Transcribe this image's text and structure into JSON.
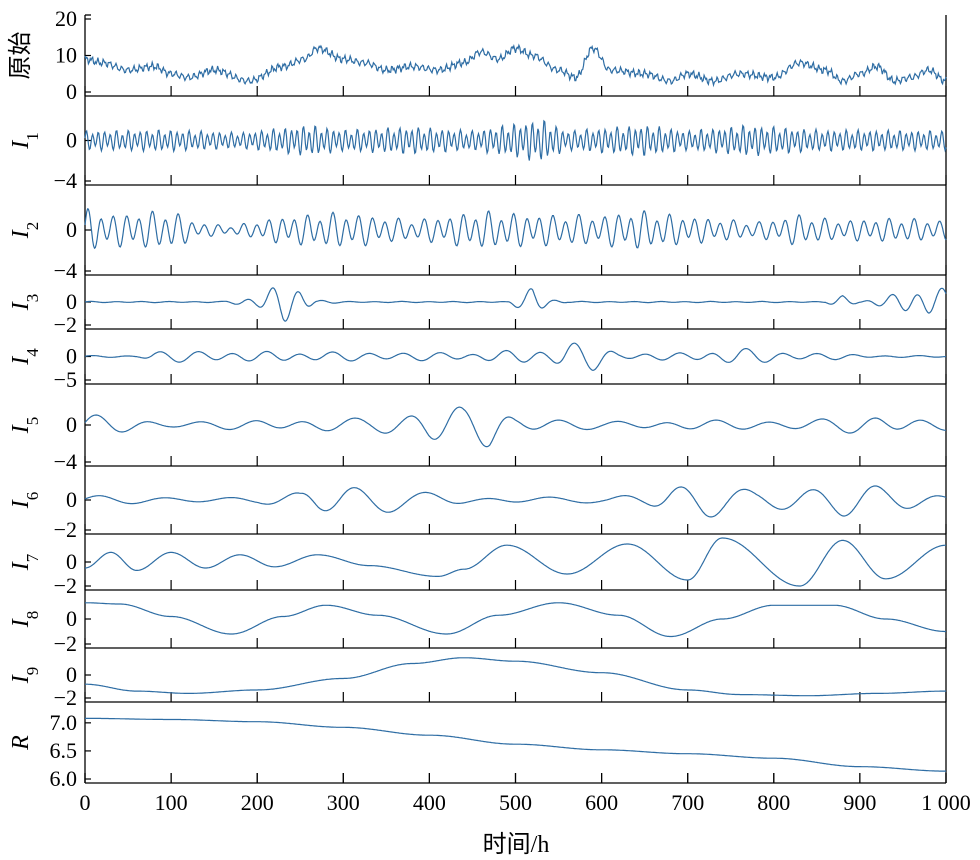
{
  "chart_data": {
    "type": "line",
    "x_range": [
      0,
      1000
    ],
    "x_ticks": [
      0,
      100,
      200,
      300,
      400,
      500,
      600,
      700,
      800,
      900,
      1000
    ],
    "x_tick_labels": [
      "0",
      "100",
      "200",
      "300",
      "400",
      "500",
      "600",
      "700",
      "800",
      "900",
      "1 000"
    ],
    "xlabel": "时间/h",
    "color": "#2e6da4",
    "grid": false,
    "panels": [
      {
        "label": "原始",
        "sub": "",
        "ylim": [
          0,
          20
        ],
        "yticks": [
          0,
          10,
          20
        ],
        "keypoints": [
          [
            0,
            9
          ],
          [
            20,
            8
          ],
          [
            50,
            6
          ],
          [
            80,
            7
          ],
          [
            100,
            5
          ],
          [
            120,
            4
          ],
          [
            150,
            6
          ],
          [
            190,
            3
          ],
          [
            230,
            7
          ],
          [
            255,
            9
          ],
          [
            270,
            12
          ],
          [
            300,
            9
          ],
          [
            325,
            8
          ],
          [
            350,
            6
          ],
          [
            380,
            7
          ],
          [
            410,
            6
          ],
          [
            440,
            8
          ],
          [
            460,
            11
          ],
          [
            480,
            9
          ],
          [
            500,
            12
          ],
          [
            520,
            10
          ],
          [
            550,
            6
          ],
          [
            570,
            4
          ],
          [
            590,
            12
          ],
          [
            610,
            6
          ],
          [
            650,
            5
          ],
          [
            680,
            3
          ],
          [
            700,
            5
          ],
          [
            730,
            3
          ],
          [
            760,
            5
          ],
          [
            800,
            4
          ],
          [
            830,
            8
          ],
          [
            860,
            6
          ],
          [
            880,
            3
          ],
          [
            900,
            5
          ],
          [
            920,
            7
          ],
          [
            940,
            3
          ],
          [
            960,
            4
          ],
          [
            980,
            6
          ],
          [
            1000,
            3
          ]
        ],
        "noise": 1.3,
        "noise_freq": 0.9
      },
      {
        "label": "I",
        "sub": "1",
        "ylim": [
          -4,
          4
        ],
        "yticks": [
          -4,
          0
        ],
        "keypoints": [
          [
            0,
            0
          ],
          [
            1000,
            0
          ]
        ],
        "oscillation": {
          "period": 7,
          "amps": [
            [
              0,
              1.0
            ],
            [
              100,
              1.1
            ],
            [
              180,
              0.8
            ],
            [
              260,
              1.6
            ],
            [
              300,
              1.1
            ],
            [
              380,
              1.4
            ],
            [
              450,
              1.0
            ],
            [
              530,
              2.2
            ],
            [
              560,
              1.0
            ],
            [
              650,
              1.6
            ],
            [
              700,
              1.0
            ],
            [
              770,
              1.6
            ],
            [
              850,
              1.1
            ],
            [
              1000,
              1.0
            ]
          ]
        }
      },
      {
        "label": "I",
        "sub": "2",
        "ylim": [
          -4,
          4
        ],
        "yticks": [
          -4,
          0
        ],
        "keypoints": [
          [
            0,
            0
          ],
          [
            1000,
            0
          ]
        ],
        "oscillation": {
          "period": 15,
          "amps": [
            [
              0,
              2.2
            ],
            [
              30,
              1.6
            ],
            [
              100,
              2.0
            ],
            [
              130,
              0.8
            ],
            [
              170,
              0.4
            ],
            [
              230,
              1.4
            ],
            [
              300,
              1.8
            ],
            [
              380,
              1.0
            ],
            [
              460,
              1.9
            ],
            [
              520,
              1.6
            ],
            [
              600,
              1.5
            ],
            [
              640,
              2.0
            ],
            [
              700,
              1.4
            ],
            [
              780,
              0.8
            ],
            [
              830,
              1.6
            ],
            [
              870,
              1.0
            ],
            [
              940,
              1.2
            ],
            [
              1000,
              1.0
            ]
          ]
        }
      },
      {
        "label": "I",
        "sub": "3",
        "ylim": [
          -2,
          2
        ],
        "yticks": [
          -2,
          0
        ],
        "keypoints": [
          [
            0,
            0
          ],
          [
            1000,
            0
          ]
        ],
        "oscillation": {
          "period": 30,
          "amps": [
            [
              0,
              0.05
            ],
            [
              160,
              0.05
            ],
            [
              180,
              0.3
            ],
            [
              200,
              0.6
            ],
            [
              230,
              1.8
            ],
            [
              250,
              1.3
            ],
            [
              270,
              0.2
            ],
            [
              300,
              0.05
            ],
            [
              490,
              0.05
            ],
            [
              510,
              0.8
            ],
            [
              520,
              1.4
            ],
            [
              540,
              0.4
            ],
            [
              560,
              0.05
            ],
            [
              860,
              0.05
            ],
            [
              880,
              0.6
            ],
            [
              900,
              0.1
            ],
            [
              930,
              0.5
            ],
            [
              960,
              1.1
            ],
            [
              980,
              1.5
            ],
            [
              1000,
              1.2
            ]
          ]
        }
      },
      {
        "label": "I",
        "sub": "4",
        "ylim": [
          -5,
          5
        ],
        "yticks": [
          -5,
          0
        ],
        "keypoints": [
          [
            0,
            0
          ],
          [
            1000,
            0
          ]
        ],
        "oscillation": {
          "period": 40,
          "amps": [
            [
              0,
              0.2
            ],
            [
              60,
              0.2
            ],
            [
              80,
              1.2
            ],
            [
              150,
              1.2
            ],
            [
              250,
              1.0
            ],
            [
              350,
              1.0
            ],
            [
              450,
              0.8
            ],
            [
              500,
              1.4
            ],
            [
              540,
              1.8
            ],
            [
              560,
              3.2
            ],
            [
              590,
              3.0
            ],
            [
              620,
              0.8
            ],
            [
              700,
              0.8
            ],
            [
              760,
              1.8
            ],
            [
              820,
              1.0
            ],
            [
              880,
              0.6
            ],
            [
              920,
              0.2
            ],
            [
              1000,
              0.2
            ]
          ]
        }
      },
      {
        "label": "I",
        "sub": "5",
        "ylim": [
          -4,
          4
        ],
        "yticks": [
          -4,
          0
        ],
        "keypoints": [
          [
            0,
            0
          ],
          [
            1000,
            0
          ]
        ],
        "oscillation": {
          "period": 60,
          "amps": [
            [
              0,
              1.2
            ],
            [
              100,
              0.4
            ],
            [
              250,
              0.6
            ],
            [
              330,
              0.8
            ],
            [
              370,
              1.6
            ],
            [
              400,
              2.6
            ],
            [
              420,
              2.4
            ],
            [
              440,
              2.0
            ],
            [
              470,
              2.5
            ],
            [
              500,
              1.0
            ],
            [
              600,
              0.4
            ],
            [
              700,
              0.5
            ],
            [
              800,
              0.6
            ],
            [
              870,
              0.8
            ],
            [
              920,
              1.0
            ],
            [
              1000,
              0.6
            ]
          ]
        }
      },
      {
        "label": "I",
        "sub": "6",
        "ylim": [
          -2,
          2
        ],
        "yticks": [
          -2,
          0
        ],
        "keypoints": [
          [
            0,
            0
          ],
          [
            1000,
            0
          ]
        ],
        "oscillation": {
          "period": 75,
          "amps": [
            [
              0,
              0.3
            ],
            [
              200,
              0.2
            ],
            [
              250,
              0.6
            ],
            [
              270,
              1.3
            ],
            [
              300,
              1.5
            ],
            [
              340,
              1.1
            ],
            [
              380,
              0.6
            ],
            [
              450,
              0.2
            ],
            [
              600,
              0.2
            ],
            [
              650,
              0.6
            ],
            [
              680,
              1.2
            ],
            [
              720,
              1.2
            ],
            [
              780,
              0.7
            ],
            [
              830,
              1.3
            ],
            [
              880,
              1.4
            ],
            [
              930,
              0.8
            ],
            [
              1000,
              0.5
            ]
          ]
        }
      },
      {
        "label": "I",
        "sub": "7",
        "ylim": [
          -2,
          2
        ],
        "yticks": [
          -2,
          0
        ],
        "keypoints": [
          [
            0,
            -0.5
          ],
          [
            30,
            0.8
          ],
          [
            60,
            -0.7
          ],
          [
            100,
            0.8
          ],
          [
            140,
            -0.5
          ],
          [
            180,
            0.6
          ],
          [
            220,
            -0.4
          ],
          [
            270,
            0.6
          ],
          [
            330,
            -0.3
          ],
          [
            410,
            -1.2
          ],
          [
            440,
            -0.6
          ],
          [
            490,
            1.4
          ],
          [
            560,
            -1.0
          ],
          [
            630,
            1.5
          ],
          [
            700,
            -1.5
          ],
          [
            740,
            2.0
          ],
          [
            830,
            -2.0
          ],
          [
            880,
            1.8
          ],
          [
            930,
            -1.4
          ],
          [
            1000,
            1.4
          ]
        ]
      },
      {
        "label": "I",
        "sub": "8",
        "ylim": [
          -2,
          2
        ],
        "yticks": [
          -2,
          0
        ],
        "keypoints": [
          [
            0,
            1.3
          ],
          [
            40,
            1.2
          ],
          [
            100,
            0.2
          ],
          [
            170,
            -1.2
          ],
          [
            230,
            0.2
          ],
          [
            280,
            1.1
          ],
          [
            340,
            0.3
          ],
          [
            420,
            -1.2
          ],
          [
            480,
            0.3
          ],
          [
            550,
            1.3
          ],
          [
            620,
            0.3
          ],
          [
            680,
            -1.4
          ],
          [
            740,
            0
          ],
          [
            800,
            1.1
          ],
          [
            870,
            1.1
          ],
          [
            930,
            0
          ],
          [
            1000,
            -1.0
          ]
        ]
      },
      {
        "label": "I",
        "sub": "9",
        "ylim": [
          -2,
          2
        ],
        "yticks": [
          -2,
          0
        ],
        "keypoints": [
          [
            0,
            -0.8
          ],
          [
            60,
            -1.4
          ],
          [
            120,
            -1.6
          ],
          [
            200,
            -1.3
          ],
          [
            300,
            -0.3
          ],
          [
            380,
            1.0
          ],
          [
            440,
            1.5
          ],
          [
            500,
            1.2
          ],
          [
            600,
            0.2
          ],
          [
            700,
            -1.3
          ],
          [
            760,
            -1.7
          ],
          [
            840,
            -1.8
          ],
          [
            920,
            -1.6
          ],
          [
            1000,
            -1.4
          ]
        ]
      },
      {
        "label": "R",
        "sub": "",
        "ylim": [
          6.0,
          7.3
        ],
        "yticks": [
          6.0,
          6.5,
          7.0
        ],
        "ytick_labels": [
          "6.0",
          "6.5",
          "7.0"
        ],
        "keypoints": [
          [
            0,
            7.08
          ],
          [
            100,
            7.06
          ],
          [
            200,
            7.02
          ],
          [
            300,
            6.92
          ],
          [
            400,
            6.78
          ],
          [
            500,
            6.62
          ],
          [
            600,
            6.52
          ],
          [
            700,
            6.45
          ],
          [
            800,
            6.37
          ],
          [
            900,
            6.22
          ],
          [
            1000,
            6.14
          ]
        ]
      }
    ]
  }
}
